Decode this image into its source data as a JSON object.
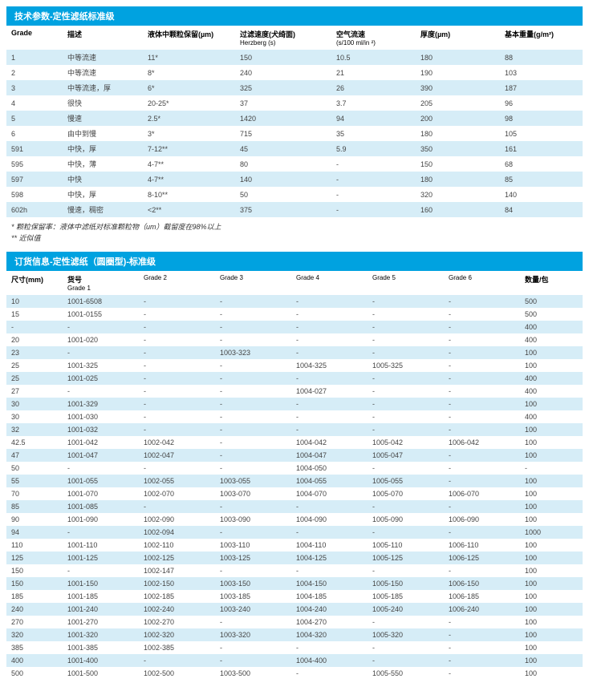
{
  "section1": {
    "title": "技术参数-定性滤纸标准级",
    "headers": [
      {
        "main": "Grade",
        "sub": ""
      },
      {
        "main": "描述",
        "sub": ""
      },
      {
        "main": "液体中颗粒保留(µm)",
        "sub": ""
      },
      {
        "main": "过滤速度(犬绮面)",
        "sub": "Herzberg (s)"
      },
      {
        "main": "空气流速",
        "sub": "(s/100 ml/in ²)"
      },
      {
        "main": "厚度(µm)",
        "sub": ""
      },
      {
        "main": "基本重量(g/m²)",
        "sub": ""
      }
    ],
    "rows": [
      [
        "1",
        "中等流速",
        "11*",
        "150",
        "10.5",
        "180",
        "88"
      ],
      [
        "2",
        "中等流速",
        "8*",
        "240",
        "21",
        "190",
        "103"
      ],
      [
        "3",
        "中等流速，厚",
        "6*",
        "325",
        "26",
        "390",
        "187"
      ],
      [
        "4",
        "很快",
        "20-25*",
        "37",
        "3.7",
        "205",
        "96"
      ],
      [
        "5",
        "慢速",
        "2.5*",
        "1420",
        "94",
        "200",
        "98"
      ],
      [
        "6",
        "由中到慢",
        "3*",
        "715",
        "35",
        "180",
        "105"
      ],
      [
        "591",
        "中快，厚",
        "7-12**",
        "45",
        "5.9",
        "350",
        "161"
      ],
      [
        "595",
        "中快，薄",
        "4-7**",
        "80",
        "-",
        "150",
        "68"
      ],
      [
        "597",
        "中快",
        "4-7**",
        "140",
        "-",
        "180",
        "85"
      ],
      [
        "598",
        "中快，厚",
        "8-10**",
        "50",
        "-",
        "320",
        "140"
      ],
      [
        "602h",
        "慢速，稠密",
        "<2**",
        "375",
        "-",
        "160",
        "84"
      ]
    ],
    "footnotes": [
      "* 颗粒保留率：液体中滤纸对标准颗粒物（um）截留度在98%以上",
      "** 近似值"
    ]
  },
  "section2": {
    "title": "订货信息-定性滤纸（圆圈型)-标准级",
    "headers": [
      {
        "main": "尺寸(mm)",
        "sub": ""
      },
      {
        "main": "货号",
        "sub": "Grade 1"
      },
      {
        "main": "",
        "sub": "Grade 2"
      },
      {
        "main": "",
        "sub": "Grade 3"
      },
      {
        "main": "",
        "sub": "Grade 4"
      },
      {
        "main": "",
        "sub": "Grade 5"
      },
      {
        "main": "",
        "sub": "Grade 6"
      },
      {
        "main": "数量/包",
        "sub": ""
      }
    ],
    "rows": [
      [
        "10",
        "1001-6508",
        "-",
        "-",
        "-",
        "-",
        "-",
        "500"
      ],
      [
        "15",
        "1001-0155",
        "-",
        "-",
        "-",
        "-",
        "-",
        "500"
      ],
      [
        "-",
        "-",
        "-",
        "-",
        "-",
        "-",
        "-",
        "400"
      ],
      [
        "20",
        "1001-020",
        "-",
        "-",
        "-",
        "-",
        "-",
        "400"
      ],
      [
        "23",
        "-",
        "-",
        "1003-323",
        "-",
        "-",
        "-",
        "100"
      ],
      [
        "25",
        "1001-325",
        "-",
        "-",
        "1004-325",
        "1005-325",
        "-",
        "100"
      ],
      [
        "25",
        "1001-025",
        "-",
        "-",
        "-",
        "-",
        "-",
        "400"
      ],
      [
        "27",
        "-",
        "-",
        "-",
        "1004-027",
        "-",
        "-",
        "400"
      ],
      [
        "30",
        "1001-329",
        "-",
        "-",
        "-",
        "-",
        "-",
        "100"
      ],
      [
        "30",
        "1001-030",
        "-",
        "-",
        "-",
        "-",
        "-",
        "400"
      ],
      [
        "32",
        "1001-032",
        "-",
        "-",
        "-",
        "-",
        "-",
        "100"
      ],
      [
        "42.5",
        "1001-042",
        "1002-042",
        "-",
        "1004-042",
        "1005-042",
        "1006-042",
        "100"
      ],
      [
        "47",
        "1001-047",
        "1002-047",
        "-",
        "1004-047",
        "1005-047",
        "-",
        "100"
      ],
      [
        "50",
        "-",
        "-",
        "-",
        "1004-050",
        "-",
        "-",
        "-"
      ],
      [
        "55",
        "1001-055",
        "1002-055",
        "1003-055",
        "1004-055",
        "1005-055",
        "-",
        "100"
      ],
      [
        "70",
        "1001-070",
        "1002-070",
        "1003-070",
        "1004-070",
        "1005-070",
        "1006-070",
        "100"
      ],
      [
        "85",
        "1001-085",
        "-",
        "-",
        "-",
        "-",
        "-",
        "100"
      ],
      [
        "90",
        "1001-090",
        "1002-090",
        "1003-090",
        "1004-090",
        "1005-090",
        "1006-090",
        "100"
      ],
      [
        "94",
        "-",
        "1002-094",
        "-",
        "-",
        "-",
        "-",
        "1000"
      ],
      [
        "110",
        "1001-110",
        "1002-110",
        "1003-110",
        "1004-110",
        "1005-110",
        "1006-110",
        "100"
      ],
      [
        "125",
        "1001-125",
        "1002-125",
        "1003-125",
        "1004-125",
        "1005-125",
        "1006-125",
        "100"
      ],
      [
        "150",
        "-",
        "1002-147",
        "-",
        "-",
        "-",
        "-",
        "100"
      ],
      [
        "150",
        "1001-150",
        "1002-150",
        "1003-150",
        "1004-150",
        "1005-150",
        "1006-150",
        "100"
      ],
      [
        "185",
        "1001-185",
        "1002-185",
        "1003-185",
        "1004-185",
        "1005-185",
        "1006-185",
        "100"
      ],
      [
        "240",
        "1001-240",
        "1002-240",
        "1003-240",
        "1004-240",
        "1005-240",
        "1006-240",
        "100"
      ],
      [
        "270",
        "1001-270",
        "1002-270",
        "-",
        "1004-270",
        "-",
        "-",
        "100"
      ],
      [
        "320",
        "1001-320",
        "1002-320",
        "1003-320",
        "1004-320",
        "1005-320",
        "-",
        "100"
      ],
      [
        "385",
        "1001-385",
        "1002-385",
        "-",
        "-",
        "-",
        "-",
        "100"
      ],
      [
        "400",
        "1001-400",
        "-",
        "-",
        "1004-400",
        "-",
        "-",
        "100"
      ],
      [
        "500",
        "1001-500",
        "1002-500",
        "1003-500",
        "-",
        "1005-550",
        "-",
        "100"
      ]
    ]
  },
  "colors": {
    "header_bg": "#00a2e0",
    "row_alt_bg": "#d6edf7",
    "row_bg": "#ffffff",
    "text": "#333333"
  }
}
